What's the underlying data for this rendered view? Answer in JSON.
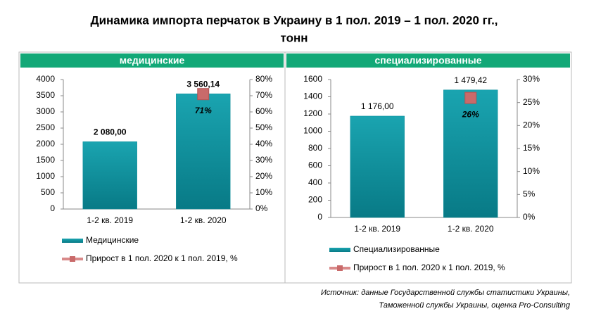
{
  "title_lines": [
    "Динамика импорта перчаток в Украину в 1 пол. 2019 – 1 пол. 2020 гг.,",
    "тонн"
  ],
  "source_lines": [
    "Источник: данные Государственной службы статистики Украины,",
    "Таможенной службы Украины, оценка Pro-Consulting"
  ],
  "chart_data": [
    {
      "type": "bar",
      "header": "медицинские",
      "categories": [
        "1-2 кв. 2019",
        "1-2 кв. 2020"
      ],
      "series": [
        {
          "name": "Медицинские",
          "color": "#0e8f9c",
          "values": [
            2080,
            3560.14
          ],
          "value_labels": [
            "2 080,00",
            "3 560,14"
          ]
        },
        {
          "name": "Прирост в 1 пол. 2020 к 1 пол. 2019, %",
          "color": "#c96a6a",
          "axis": "y2",
          "marker": "square",
          "values": [
            null,
            71
          ],
          "value_labels": [
            null,
            "71%"
          ]
        }
      ],
      "ylim": [
        0,
        4000
      ],
      "yticks": [
        0,
        500,
        1000,
        1500,
        2000,
        2500,
        3000,
        3500,
        4000
      ],
      "y2lim": [
        0,
        80
      ],
      "y2ticks": [
        {
          "value": 0,
          "label": "0%"
        },
        {
          "value": 10,
          "label": "10%"
        },
        {
          "value": 20,
          "label": "20%"
        },
        {
          "value": 30,
          "label": "30%"
        },
        {
          "value": 40,
          "label": "40%"
        },
        {
          "value": 50,
          "label": "50%"
        },
        {
          "value": 60,
          "label": "60%"
        },
        {
          "value": 70,
          "label": "70%"
        },
        {
          "value": 80,
          "label": "80%"
        }
      ]
    },
    {
      "type": "bar",
      "header": "специализированные",
      "categories": [
        "1-2 кв. 2019",
        "1-2 кв. 2020"
      ],
      "series": [
        {
          "name": "Специализированные",
          "color": "#0e8f9c",
          "values": [
            1176,
            1479.42
          ],
          "value_labels": [
            "1 176,00",
            "1 479,42"
          ]
        },
        {
          "name": "Прирост в 1 пол. 2020 к 1 пол. 2019, %",
          "color": "#c96a6a",
          "axis": "y2",
          "marker": "square",
          "values": [
            null,
            26
          ],
          "value_labels": [
            null,
            "26%"
          ]
        }
      ],
      "ylim": [
        0,
        1600
      ],
      "yticks": [
        0,
        200,
        400,
        600,
        800,
        1000,
        1200,
        1400,
        1600
      ],
      "y2lim": [
        0,
        30
      ],
      "y2ticks": [
        {
          "value": 0,
          "label": "0%"
        },
        {
          "value": 5,
          "label": "5%"
        },
        {
          "value": 10,
          "label": "10%"
        },
        {
          "value": 15,
          "label": "15%"
        },
        {
          "value": 20,
          "label": "20%"
        },
        {
          "value": 25,
          "label": "25%"
        },
        {
          "value": 30,
          "label": "30%"
        }
      ]
    }
  ]
}
